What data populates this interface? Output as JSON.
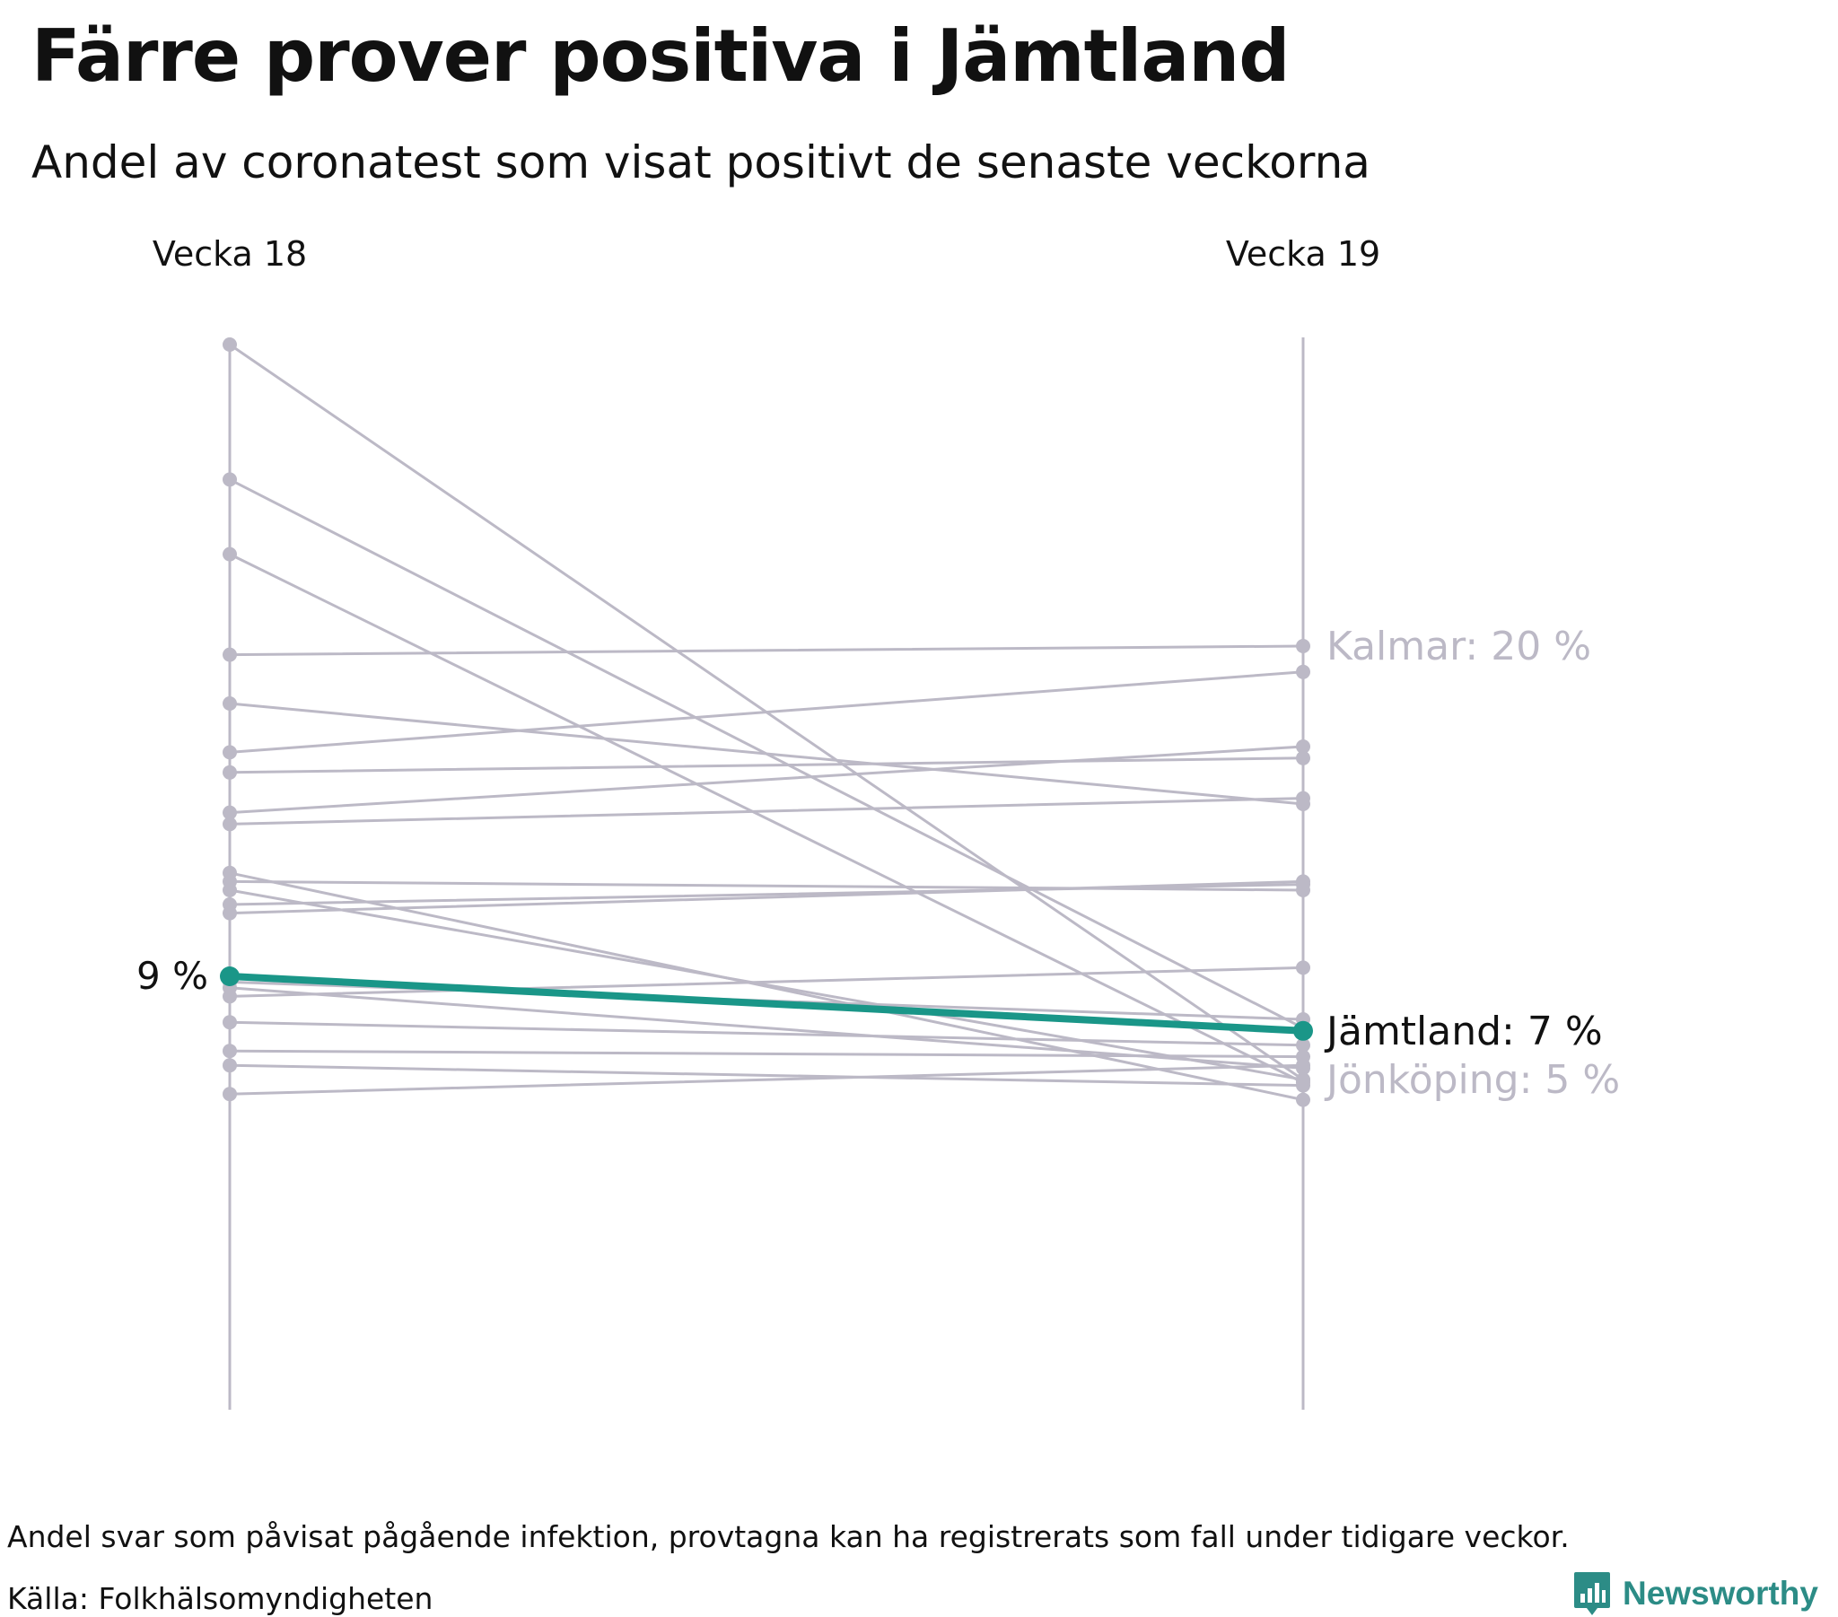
{
  "title": "Färre prover positiva i Jämtland",
  "subtitle": "Andel av coronatest som visat positivt de senaste veckorna",
  "footnote": "Andel svar som påvisat pågående infektion, provtagna kan ha registrerats som fall under tidigare veckor.",
  "source": "Källa: Folkhälsomyndigheten",
  "brand": "Newsworthy",
  "colors": {
    "highlight": "#1a9688",
    "muted": "#bcb9c6",
    "text": "#111111"
  },
  "chart_data": {
    "type": "slope",
    "title": "Färre prover positiva i Jämtland",
    "subtitle": "Andel av coronatest som visat positivt de senaste veckorna",
    "x": [
      "Vecka 18",
      "Vecka 19"
    ],
    "unit": "%",
    "ylim": [
      0,
      31
    ],
    "grid": false,
    "legend": "none",
    "series": [
      {
        "values": [
          31.0,
          5.4
        ]
      },
      {
        "values": [
          26.3,
          7.2
        ]
      },
      {
        "values": [
          23.7,
          5.3
        ]
      },
      {
        "values": [
          20.2,
          20.5
        ]
      },
      {
        "values": [
          18.5,
          15.0
        ]
      },
      {
        "values": [
          16.8,
          19.6
        ]
      },
      {
        "values": [
          16.1,
          16.6
        ]
      },
      {
        "values": [
          14.7,
          17.0
        ]
      },
      {
        "values": [
          14.3,
          15.2
        ]
      },
      {
        "values": [
          12.6,
          4.7
        ]
      },
      {
        "values": [
          12.3,
          12.0
        ]
      },
      {
        "values": [
          12.0,
          5.4
        ]
      },
      {
        "values": [
          11.5,
          12.2
        ]
      },
      {
        "values": [
          11.2,
          12.3
        ]
      },
      {
        "name": "Jämtland",
        "values": [
          9.0,
          7.1
        ],
        "highlight": true
      },
      {
        "values": [
          8.8,
          7.5
        ]
      },
      {
        "values": [
          8.6,
          5.8
        ]
      },
      {
        "values": [
          8.3,
          9.3
        ]
      },
      {
        "values": [
          7.4,
          6.6
        ]
      },
      {
        "values": [
          6.4,
          6.2
        ]
      },
      {
        "values": [
          5.9,
          5.2
        ]
      },
      {
        "values": [
          4.9,
          5.9
        ]
      }
    ],
    "labels": {
      "left_highlight": "9 %",
      "right": [
        {
          "text": "Kalmar: 20 %",
          "value": 20.5,
          "muted": true
        },
        {
          "text": "Jämtland: 7 %",
          "value": 7.1,
          "muted": false
        },
        {
          "text": "Jönköping: 5 %",
          "value": 5.4,
          "muted": true
        }
      ]
    }
  }
}
